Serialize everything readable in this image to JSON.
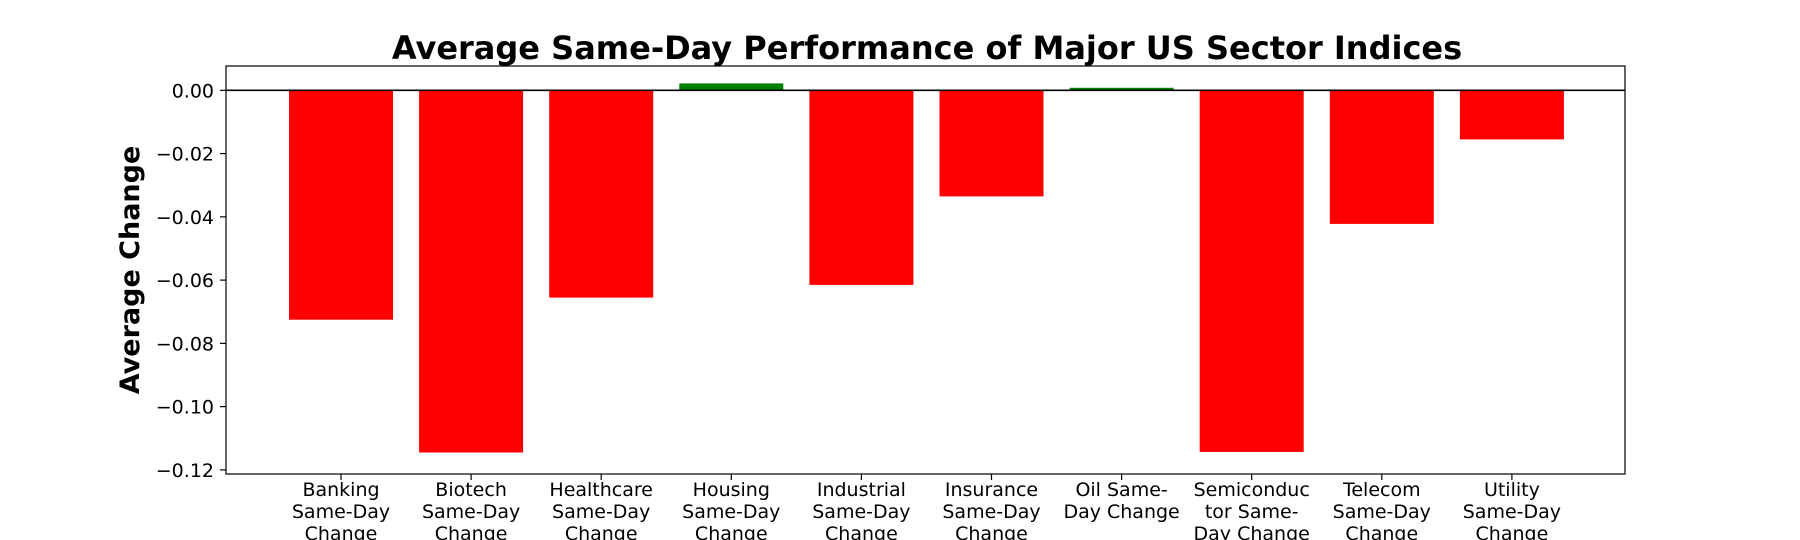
{
  "chart_data": {
    "type": "bar",
    "title": "Average Same-Day Performance of Major US Sector Indices",
    "xlabel": "",
    "ylabel": "Average Change",
    "ylim": [
      -0.1213,
      0.0077
    ],
    "yticks": [
      0.0,
      -0.02,
      -0.04,
      -0.06,
      -0.08,
      -0.1,
      -0.12
    ],
    "ytick_labels": [
      "0.00",
      "−0.02",
      "−0.04",
      "−0.06",
      "−0.08",
      "−0.10",
      "−0.12"
    ],
    "categories": [
      "Banking Same-Day Change",
      "Biotech Same-Day Change",
      "Healthcare Same-Day Change",
      "Housing Same-Day Change",
      "Industrial Same-Day Change",
      "Insurance Same-Day Change",
      "Oil Same-Day Change",
      "Semiconductor Same-Day Change",
      "Telecom Same-Day Change",
      "Utility Same-Day Change"
    ],
    "category_label_lines": [
      [
        "Banking",
        "Same-Day",
        "Change"
      ],
      [
        "Biotech",
        "Same-Day",
        "Change"
      ],
      [
        "Healthcare",
        "Same-Day",
        "Change"
      ],
      [
        "Housing",
        "Same-Day",
        "Change"
      ],
      [
        "Industrial",
        "Same-Day",
        "Change"
      ],
      [
        "Insurance",
        "Same-Day",
        "Change"
      ],
      [
        "Oil Same-",
        "Day Change"
      ],
      [
        "Semiconduc",
        "tor Same-",
        "Day Change"
      ],
      [
        "Telecom",
        "Same-Day",
        "Change"
      ],
      [
        "Utility",
        "Same-Day",
        "Change"
      ]
    ],
    "values": [
      -0.0725,
      -0.1145,
      -0.0655,
      0.0022,
      -0.0615,
      -0.0335,
      0.0008,
      -0.1143,
      -0.0422,
      -0.0155
    ],
    "colors": {
      "positive": "#008000",
      "negative": "#ff0000"
    },
    "grid": false,
    "zero_line": true
  }
}
